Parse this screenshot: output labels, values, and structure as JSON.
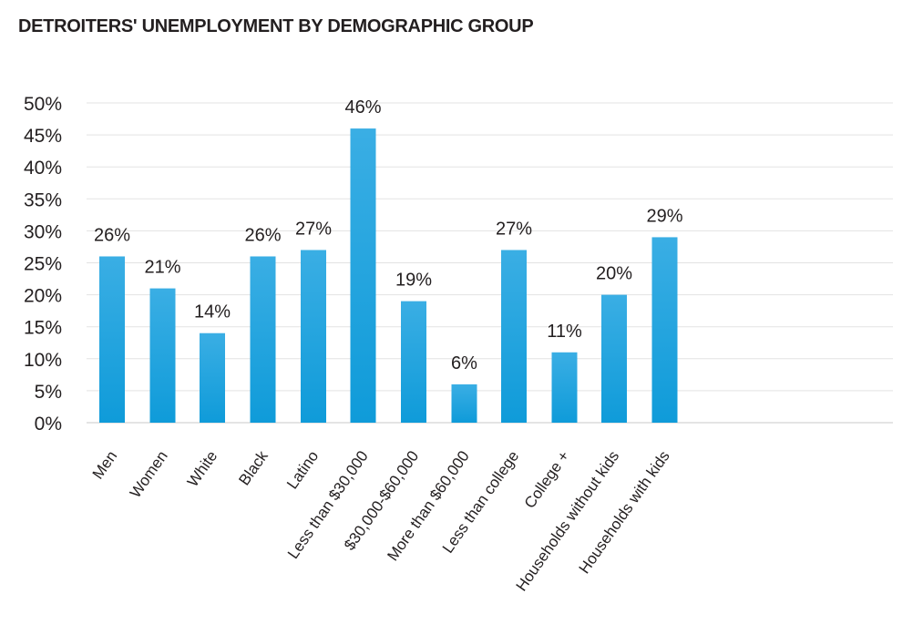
{
  "chart_data": {
    "type": "bar",
    "title": "DETROITERS' UNEMPLOYMENT BY DEMOGRAPHIC GROUP",
    "xlabel": "",
    "ylabel": "",
    "ylim": [
      0,
      50
    ],
    "ytick_values": [
      0,
      5,
      10,
      15,
      20,
      25,
      30,
      35,
      40,
      45,
      50
    ],
    "ytick_labels": [
      "0%",
      "5%",
      "10%",
      "15%",
      "20%",
      "25%",
      "30%",
      "35%",
      "40%",
      "45%",
      "50%"
    ],
    "grid": true,
    "legend": "none",
    "bar_color": "#29a8e0",
    "groups": [
      {
        "categories": [
          "Men",
          "Women"
        ],
        "values": [
          26,
          21
        ],
        "labels": [
          "26%",
          "21%"
        ]
      },
      {
        "categories": [
          "White",
          "Black",
          "Latino"
        ],
        "values": [
          14,
          26,
          27
        ],
        "labels": [
          "14%",
          "26%",
          "27%"
        ]
      },
      {
        "categories": [
          "Less than $30,000",
          "$30,000-$60,000",
          "More than $60,000"
        ],
        "values": [
          46,
          19,
          6
        ],
        "labels": [
          "46%",
          "19%",
          "6%"
        ]
      },
      {
        "categories": [
          "Less than college",
          "College +"
        ],
        "values": [
          27,
          11
        ],
        "labels": [
          "27%",
          "11%"
        ]
      },
      {
        "categories": [
          "Households without kids",
          "Households with kids"
        ],
        "values": [
          20,
          29
        ],
        "labels": [
          "20%",
          "29%"
        ]
      }
    ]
  }
}
